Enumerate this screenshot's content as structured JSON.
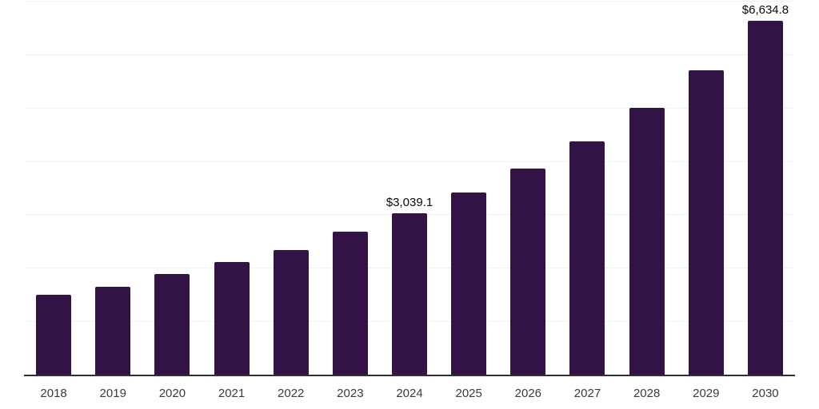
{
  "chart_data": {
    "type": "bar",
    "title": "",
    "xlabel": "",
    "ylabel": "",
    "categories": [
      "2018",
      "2019",
      "2020",
      "2021",
      "2022",
      "2023",
      "2024",
      "2025",
      "2026",
      "2027",
      "2028",
      "2029",
      "2030"
    ],
    "values": [
      1510,
      1660,
      1905,
      2120,
      2355,
      2700,
      3039.1,
      3430,
      3880,
      4385,
      5010,
      5710,
      6634.8
    ],
    "value_labels": [
      "",
      "",
      "",
      "",
      "",
      "",
      "$3,039.1",
      "",
      "",
      "",
      "",
      "",
      "$6,634.8"
    ],
    "ylim": [
      0,
      7000
    ],
    "gridline_step": 1000,
    "grid": true,
    "legend_position": "none",
    "y_axis_ticks_visible": false
  },
  "colors": {
    "bar": "#331246",
    "gridline": "#f2f2f2",
    "axis_line": "#2f2f2f",
    "tick_label": "#3b3b3b",
    "value_label": "#0a0a0a",
    "background": "#ffffff"
  }
}
